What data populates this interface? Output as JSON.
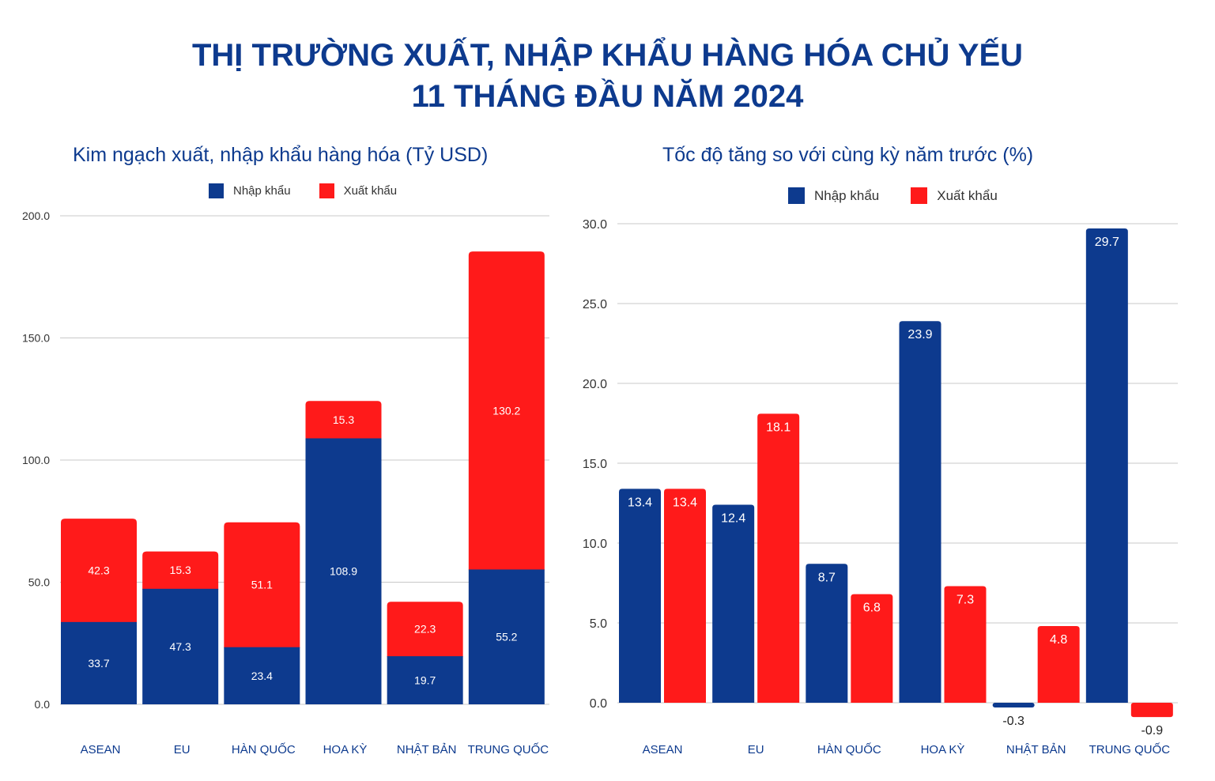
{
  "title_line1": "THỊ TRƯỜNG XUẤT, NHẬP KHẨU HÀNG HÓA CHỦ YẾU",
  "title_line2": "11 THÁNG ĐẦU NĂM 2024",
  "colors": {
    "import": "#0d3a8e",
    "export": "#ff1a1a",
    "title": "#0d3a8e"
  },
  "chart_data": [
    {
      "type": "bar",
      "stacked": true,
      "title": "Kim ngạch xuất, nhập khẩu hàng hóa (Tỷ USD)",
      "categories": [
        "ASEAN",
        "EU",
        "HÀN QUỐC",
        "HOA KỲ",
        "NHẬT BẢN",
        "TRUNG QUỐC"
      ],
      "series": [
        {
          "name": "Nhập khẩu",
          "values": [
            33.7,
            47.3,
            23.4,
            108.9,
            19.7,
            55.2
          ]
        },
        {
          "name": "Xuất khẩu",
          "values": [
            42.3,
            15.3,
            51.1,
            15.3,
            22.3,
            130.2
          ]
        }
      ],
      "value_labels": [
        [
          "33.7",
          "47.3",
          "23.4",
          "108.9",
          "19.7",
          "55.2"
        ],
        [
          "42.3",
          "15.3",
          "51.1",
          "15.3",
          "22.3",
          "130.2"
        ]
      ],
      "ylim": [
        0,
        200
      ],
      "yticks": [
        "0.0",
        "50.0",
        "100.0",
        "150.0",
        "200.0"
      ],
      "legend": "top"
    },
    {
      "type": "bar",
      "stacked": false,
      "title": "Tốc độ tăng so với cùng kỳ năm trước (%)",
      "categories": [
        "ASEAN",
        "EU",
        "HÀN QUỐC",
        "HOA KỲ",
        "NHẬT BẢN",
        "TRUNG QUỐC"
      ],
      "series": [
        {
          "name": "Nhập khẩu",
          "values": [
            13.4,
            12.4,
            8.7,
            23.9,
            -0.3,
            29.7
          ]
        },
        {
          "name": "Xuất khẩu",
          "values": [
            13.4,
            18.1,
            6.8,
            7.3,
            4.8,
            -0.9
          ]
        }
      ],
      "value_labels": [
        [
          "13.4",
          "12.4",
          "8.7",
          "23.9",
          "-0.3",
          "29.7"
        ],
        [
          "13.4",
          "18.1",
          "6.8",
          "7.3",
          "4.8",
          "-0.9"
        ]
      ],
      "ylim": [
        0,
        30
      ],
      "yticks": [
        "0.0",
        "5.0",
        "10.0",
        "15.0",
        "20.0",
        "25.0",
        "30.0"
      ],
      "legend": "top"
    }
  ]
}
